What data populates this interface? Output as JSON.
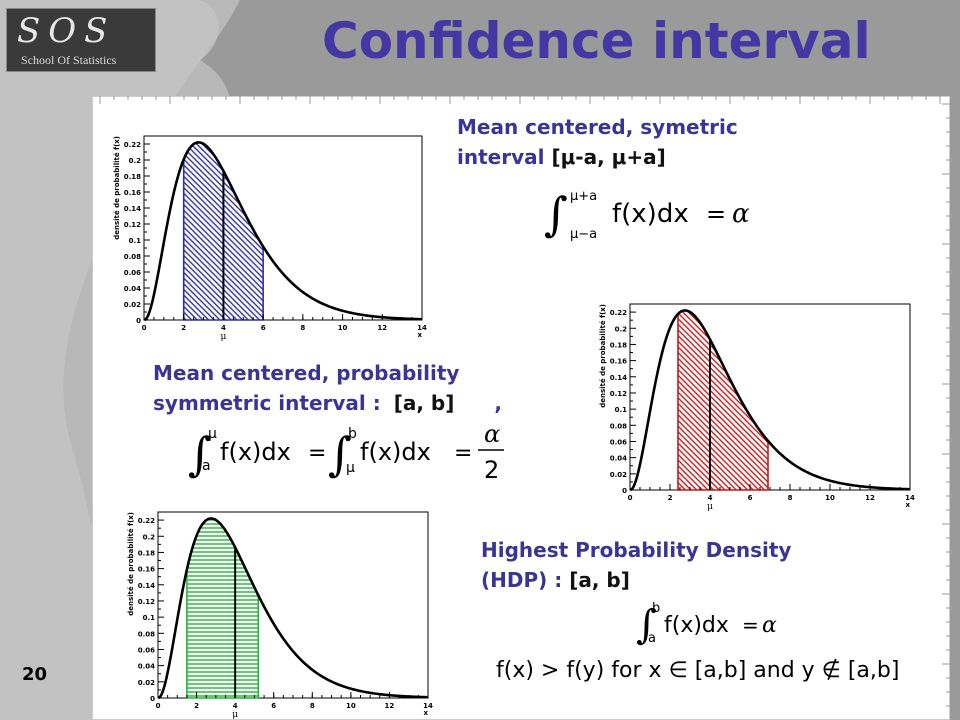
{
  "logo": {
    "letters": "SOS",
    "subtitle": "School Of Statistics"
  },
  "title": "Confidence interval",
  "page_number": "20",
  "sections": {
    "symmetric": {
      "line1": "Mean centered, symetric",
      "line2_prefix": "interval ",
      "line2_interval": "[μ-a, μ+a]"
    },
    "probability": {
      "line1": "Mean centered, probability",
      "line2_prefix": "symmetric interval : ",
      "line2_interval": "[a, b]",
      "comma": ","
    },
    "hdp": {
      "line1": "Highest Probability Density",
      "line2_prefix": "(HDP) : ",
      "line2_interval": "[a, b]"
    }
  },
  "formulas": {
    "f1": {
      "upper": "μ+a",
      "lower": "μ−a",
      "integrand": "f(x)dx",
      "equals": "=",
      "alpha": "α"
    },
    "f2": {
      "first_upper": "μ",
      "first_lower": "a",
      "integrand": "f(x)dx",
      "equals": "=",
      "second_upper": "b",
      "second_lower": "μ",
      "numerator": "α",
      "denominator": "2"
    },
    "f3": {
      "upper": "b",
      "lower": "a",
      "integrand": "f(x)dx",
      "equals": "=",
      "alpha": "α"
    },
    "f4": {
      "text": "f(x) > f(y) for x ∈ [a,b] and y ∉ [a,b]"
    }
  },
  "plot_text": {
    "ylabel": "densité de probabilité f(x)",
    "xlabel": "x",
    "mu_label": "μ",
    "yticks": [
      "0",
      "0.02",
      "0.04",
      "0.06",
      "0.08",
      "0.1",
      "0.12",
      "0.14",
      "0.16",
      "0.18",
      "0.2",
      "0.22"
    ],
    "xticks": [
      "0",
      "2",
      "4",
      "6",
      "8",
      "10",
      "12",
      "14"
    ]
  },
  "chart_data": [
    {
      "type": "area",
      "name": "symmetric",
      "x_range": [
        0,
        14
      ],
      "y_range": [
        0,
        0.23
      ],
      "mean": 4,
      "interval": [
        2,
        6
      ],
      "fill_color": "#2f2f9c",
      "xlabel": "x",
      "ylabel": "densité de probabilité f(x)"
    },
    {
      "type": "area",
      "name": "probability-symmetric",
      "x_range": [
        0,
        14
      ],
      "y_range": [
        0,
        0.23
      ],
      "mean": 4,
      "interval": [
        2.4,
        6.9
      ],
      "fill_color": "#c41a1a",
      "xlabel": "x",
      "ylabel": "densité de probabilité f(x)"
    },
    {
      "type": "area",
      "name": "hdp",
      "x_range": [
        0,
        14
      ],
      "y_range": [
        0,
        0.23
      ],
      "mean": 4,
      "interval": [
        1.5,
        5.2
      ],
      "fill_color": "#22b53a",
      "xlabel": "x",
      "ylabel": "densité de probabilité f(x)"
    }
  ],
  "colors": {
    "title": "#4436a3",
    "label": "#3b3493"
  }
}
